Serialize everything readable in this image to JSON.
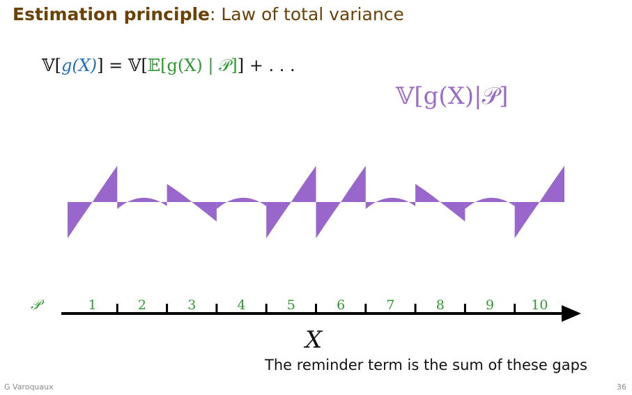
{
  "title": {
    "bold": "Estimation principle",
    "rest": ": Law of total variance"
  },
  "equation": {
    "lhs_open": "𝕍[",
    "lhs_g": "g(X)",
    "lhs_close": "] = 𝕍[",
    "rhs_inner": "𝔼[g(X) | 𝒫]",
    "rhs_close": "] + . . ."
  },
  "variance_label": "𝕍[g(X)|𝒫]",
  "axis": {
    "partition_symbol": "𝒫",
    "partition_labels": [
      "1",
      "2",
      "3",
      "4",
      "5",
      "6",
      "7",
      "8",
      "9",
      "10"
    ],
    "variable": "X"
  },
  "caption": "The reminder term is the sum of these gaps",
  "footer": {
    "author": "G Varoquaux",
    "page": "36"
  },
  "colors": {
    "title": "#6b4106",
    "blue": "#1f6fb8",
    "green": "#2e9a2e",
    "purple": "#9c6cc4",
    "fill": "#9966cc"
  }
}
